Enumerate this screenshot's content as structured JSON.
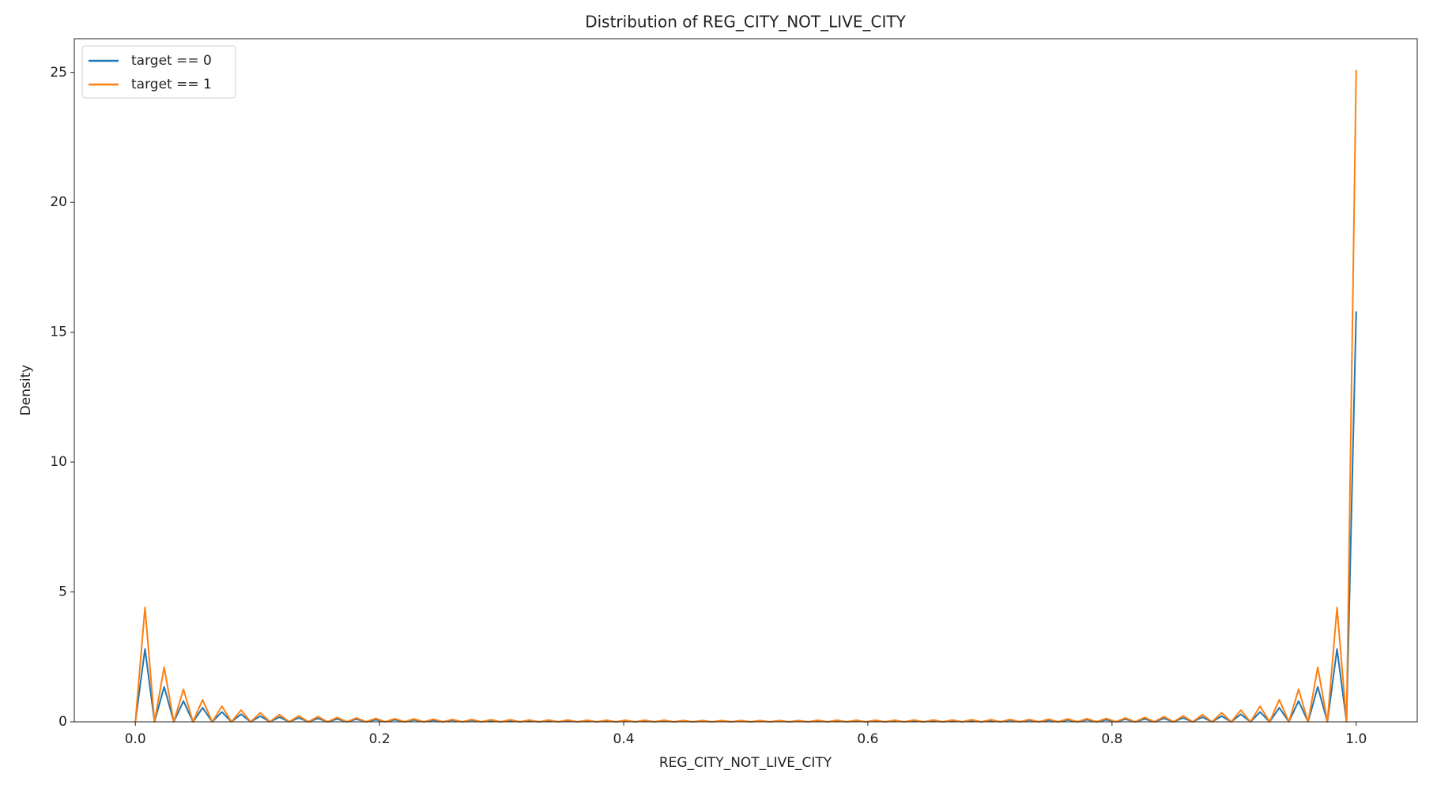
{
  "chart_data": {
    "type": "line",
    "title": "Distribution of REG_CITY_NOT_LIVE_CITY",
    "x_label": "REG_CITY_NOT_LIVE_CITY",
    "y_label": "Density",
    "legend": "upper left",
    "grid": false,
    "xlim": [
      -0.05,
      1.05
    ],
    "ylim": [
      0,
      26.3
    ],
    "xticks": [
      {
        "value": 0,
        "label": "0.0"
      },
      0.2,
      0.4,
      0.6,
      0.8,
      {
        "value": 1,
        "label": "1.0"
      }
    ],
    "yticks": [
      0,
      5,
      10,
      15,
      20,
      25
    ],
    "x": [
      0,
      0.0079,
      0.0157,
      0.0236,
      0.0315,
      0.0394,
      0.0472,
      0.0551,
      0.063,
      0.0709,
      0.0787,
      0.0866,
      0.0945,
      0.1024,
      0.1102,
      0.1181,
      0.126,
      0.1339,
      0.1417,
      0.1496,
      0.1575,
      0.1654,
      0.1732,
      0.1811,
      0.189,
      0.1969,
      0.2047,
      0.2126,
      0.2205,
      0.2283,
      0.2362,
      0.2441,
      0.252,
      0.2598,
      0.2677,
      0.2756,
      0.2835,
      0.2913,
      0.2992,
      0.3071,
      0.315,
      0.3228,
      0.3307,
      0.3386,
      0.3465,
      0.3543,
      0.3622,
      0.3701,
      0.378,
      0.3858,
      0.3937,
      0.4016,
      0.4094,
      0.4173,
      0.4252,
      0.4331,
      0.4409,
      0.4488,
      0.4567,
      0.4646,
      0.4724,
      0.4803,
      0.4882,
      0.4961,
      0.5039,
      0.5118,
      0.5197,
      0.5276,
      0.5354,
      0.5433,
      0.5512,
      0.5591,
      0.5669,
      0.5748,
      0.5827,
      0.5906,
      0.5984,
      0.6063,
      0.6142,
      0.622,
      0.6299,
      0.6378,
      0.6457,
      0.6535,
      0.6614,
      0.6693,
      0.6772,
      0.685,
      0.6929,
      0.7008,
      0.7087,
      0.7165,
      0.7244,
      0.7323,
      0.7402,
      0.748,
      0.7559,
      0.7638,
      0.7717,
      0.7795,
      0.7874,
      0.7953,
      0.8031,
      0.811,
      0.8189,
      0.8268,
      0.8346,
      0.8425,
      0.8504,
      0.8583,
      0.8661,
      0.874,
      0.8819,
      0.8898,
      0.8976,
      0.9055,
      0.9134,
      0.9213,
      0.9291,
      0.937,
      0.9449,
      0.9528,
      0.9606,
      0.9685,
      0.9764,
      0.9843,
      0.9921,
      1.0
    ],
    "series": [
      {
        "name": "target == 0",
        "color": "#1f77b4",
        "values": [
          0,
          2.8,
          0,
          1.35,
          0,
          0.8,
          0,
          0.54,
          0,
          0.38,
          0,
          0.29,
          0,
          0.22,
          0,
          0.18,
          0,
          0.15,
          0,
          0.13,
          0,
          0.11,
          0,
          0.1,
          0,
          0.08,
          0,
          0.08,
          0,
          0.07,
          0,
          0.06,
          0,
          0.06,
          0,
          0.06,
          0,
          0.05,
          0,
          0.05,
          0,
          0.04,
          0,
          0.04,
          0,
          0.04,
          0,
          0.04,
          0,
          0.04,
          0,
          0.04,
          0,
          0.04,
          0,
          0.04,
          0,
          0.03,
          0,
          0.03,
          0,
          0.03,
          0,
          0.03,
          0,
          0.03,
          0,
          0.03,
          0,
          0.03,
          0,
          0.04,
          0,
          0.04,
          0,
          0.04,
          0,
          0.04,
          0,
          0.04,
          0,
          0.04,
          0,
          0.04,
          0,
          0.04,
          0,
          0.05,
          0,
          0.05,
          0,
          0.06,
          0,
          0.06,
          0,
          0.06,
          0,
          0.07,
          0,
          0.08,
          0,
          0.08,
          0,
          0.1,
          0,
          0.11,
          0,
          0.13,
          0,
          0.15,
          0,
          0.18,
          0,
          0.22,
          0,
          0.29,
          0,
          0.38,
          0,
          0.54,
          0,
          0.8,
          0,
          1.35,
          0,
          2.8,
          0,
          15.8
        ]
      },
      {
        "name": "target == 1",
        "color": "#ff7f0e",
        "values": [
          0,
          4.4,
          0,
          2.1,
          0,
          1.25,
          0,
          0.85,
          0,
          0.6,
          0,
          0.45,
          0,
          0.35,
          0,
          0.28,
          0,
          0.23,
          0,
          0.2,
          0,
          0.17,
          0,
          0.15,
          0,
          0.13,
          0,
          0.12,
          0,
          0.11,
          0,
          0.1,
          0,
          0.09,
          0,
          0.09,
          0,
          0.08,
          0,
          0.08,
          0,
          0.07,
          0,
          0.07,
          0,
          0.07,
          0,
          0.06,
          0,
          0.06,
          0,
          0.06,
          0,
          0.06,
          0,
          0.06,
          0,
          0.05,
          0,
          0.05,
          0,
          0.05,
          0,
          0.05,
          0,
          0.05,
          0,
          0.05,
          0,
          0.05,
          0,
          0.06,
          0,
          0.06,
          0,
          0.06,
          0,
          0.06,
          0,
          0.06,
          0,
          0.07,
          0,
          0.07,
          0,
          0.07,
          0,
          0.08,
          0,
          0.08,
          0,
          0.09,
          0,
          0.09,
          0,
          0.1,
          0,
          0.11,
          0,
          0.12,
          0,
          0.13,
          0,
          0.15,
          0,
          0.17,
          0,
          0.2,
          0,
          0.23,
          0,
          0.28,
          0,
          0.35,
          0,
          0.45,
          0,
          0.6,
          0,
          0.85,
          0,
          1.25,
          0,
          2.1,
          0,
          4.4,
          0,
          25.1
        ]
      }
    ]
  }
}
